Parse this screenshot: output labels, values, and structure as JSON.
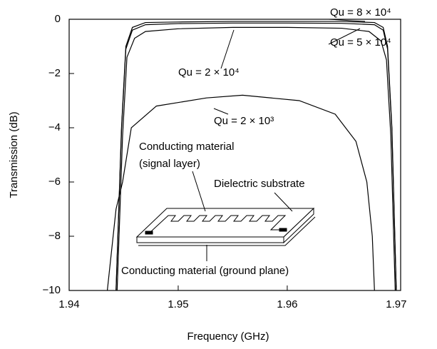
{
  "chart_data": {
    "type": "line",
    "xlabel": "Frequency (GHz)",
    "ylabel": "Transmission (dB)",
    "xlim": [
      1.94,
      1.9704
    ],
    "ylim": [
      -10,
      0
    ],
    "xticks": [
      1.94,
      1.95,
      1.96,
      1.97
    ],
    "yticks": [
      0,
      {
        "value": -2,
        "label": "−2"
      },
      {
        "value": -4,
        "label": "−4"
      },
      {
        "value": -6,
        "label": "−6"
      },
      {
        "value": -8,
        "label": "−8"
      },
      {
        "value": -10,
        "label": "−10"
      }
    ],
    "series": [
      {
        "name": "Qu = 8 × 10⁴",
        "color": "#000000",
        "x": [
          1.9443,
          1.9448,
          1.9452,
          1.9458,
          1.947,
          1.95,
          1.955,
          1.96,
          1.965,
          1.968,
          1.9688,
          1.9692,
          1.9696,
          1.97
        ],
        "values": [
          -10,
          -4,
          -1,
          -0.3,
          -0.12,
          -0.1,
          -0.08,
          -0.08,
          -0.08,
          -0.12,
          -0.3,
          -1,
          -4,
          -10
        ]
      },
      {
        "name": "Qu = 5 × 10⁴",
        "color": "#000000",
        "x": [
          1.9443,
          1.9448,
          1.9452,
          1.9458,
          1.947,
          1.95,
          1.955,
          1.96,
          1.965,
          1.968,
          1.9688,
          1.9692,
          1.9696,
          1.97
        ],
        "values": [
          -10,
          -4.1,
          -1.1,
          -0.4,
          -0.2,
          -0.16,
          -0.14,
          -0.14,
          -0.15,
          -0.2,
          -0.4,
          -1.1,
          -4.1,
          -10
        ]
      },
      {
        "name": "Qu = 2 × 10⁴",
        "color": "#000000",
        "x": [
          1.9444,
          1.9449,
          1.9453,
          1.946,
          1.947,
          1.95,
          1.955,
          1.96,
          1.965,
          1.9675,
          1.9686,
          1.9691,
          1.9695,
          1.9699
        ],
        "values": [
          -10,
          -4.3,
          -1.4,
          -0.7,
          -0.45,
          -0.35,
          -0.3,
          -0.3,
          -0.33,
          -0.45,
          -0.8,
          -1.5,
          -4.3,
          -10
        ]
      },
      {
        "name": "Qu = 2 × 10³",
        "color": "#000000",
        "x": [
          1.9435,
          1.9443,
          1.9449,
          1.9457,
          1.948,
          1.9526,
          1.9559,
          1.9611,
          1.9644,
          1.9663,
          1.9673,
          1.9678,
          1.968
        ],
        "values": [
          -10,
          -7,
          -6,
          -4,
          -3.2,
          -2.9,
          -2.8,
          -3,
          -3.5,
          -4.5,
          -6,
          -8,
          -10
        ]
      }
    ],
    "annotations": [
      "Qu = 8 × 10⁴",
      "Qu = 5 × 10⁴",
      "Qu = 2 × 10⁴",
      "Qu = 2 × 10³",
      "Conducting material",
      "(signal layer)",
      "Dielectric substrate",
      "Conducting material (ground plane)"
    ]
  }
}
